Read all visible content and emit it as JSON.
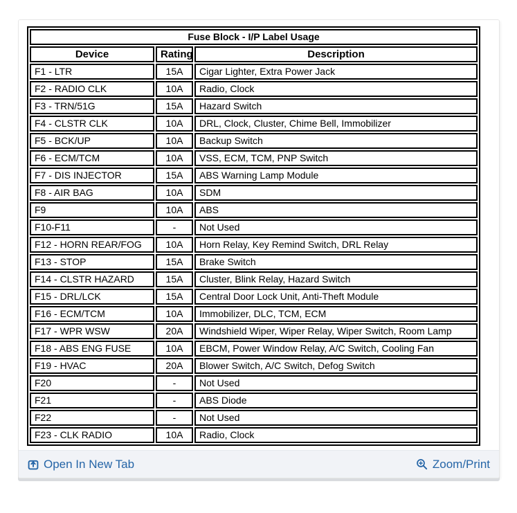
{
  "table": {
    "title": "Fuse Block - I/P Label Usage",
    "columns": [
      "Device",
      "Rating",
      "Description"
    ],
    "rows": [
      {
        "device": "F1 - LTR",
        "rating": "15A",
        "description": "Cigar Lighter, Extra Power Jack"
      },
      {
        "device": "F2 - RADIO CLK",
        "rating": "10A",
        "description": "Radio, Clock"
      },
      {
        "device": "F3 - TRN/51G",
        "rating": "15A",
        "description": "Hazard Switch"
      },
      {
        "device": "F4 - CLSTR CLK",
        "rating": "10A",
        "description": "DRL, Clock, Cluster, Chime Bell, Immobilizer"
      },
      {
        "device": "F5 - BCK/UP",
        "rating": "10A",
        "description": "Backup Switch"
      },
      {
        "device": "F6 - ECM/TCM",
        "rating": "10A",
        "description": "VSS, ECM, TCM, PNP Switch"
      },
      {
        "device": "F7 - DIS INJECTOR",
        "rating": "15A",
        "description": "ABS Warning Lamp Module"
      },
      {
        "device": "F8 - AIR BAG",
        "rating": "10A",
        "description": "SDM"
      },
      {
        "device": "F9",
        "rating": "10A",
        "description": "ABS"
      },
      {
        "device": "F10-F11",
        "rating": "-",
        "description": "Not Used"
      },
      {
        "device": "F12 - HORN REAR/FOG",
        "rating": "10A",
        "description": "Horn Relay, Key Remind Switch, DRL Relay"
      },
      {
        "device": "F13 - STOP",
        "rating": "15A",
        "description": "Brake Switch"
      },
      {
        "device": "F14 - CLSTR HAZARD",
        "rating": "15A",
        "description": "Cluster, Blink Relay, Hazard Switch"
      },
      {
        "device": "F15 - DRL/LCK",
        "rating": "15A",
        "description": "Central Door Lock Unit, Anti-Theft Module"
      },
      {
        "device": "F16 - ECM/TCM",
        "rating": "10A",
        "description": "Immobilizer, DLC, TCM, ECM"
      },
      {
        "device": "F17 - WPR WSW",
        "rating": "20A",
        "description": "Windshield Wiper, Wiper Relay, Wiper Switch, Room Lamp"
      },
      {
        "device": "F18 - ABS ENG FUSE",
        "rating": "10A",
        "description": "EBCM, Power Window Relay, A/C Switch, Cooling Fan"
      },
      {
        "device": "F19 - HVAC",
        "rating": "20A",
        "description": "Blower Switch, A/C Switch, Defog Switch"
      },
      {
        "device": "F20",
        "rating": "-",
        "description": "Not Used"
      },
      {
        "device": "F21",
        "rating": "-",
        "description": "ABS Diode"
      },
      {
        "device": "F22",
        "rating": "-",
        "description": "Not Used"
      },
      {
        "device": "F23 - CLK RADIO",
        "rating": "10A",
        "description": "Radio, Clock"
      }
    ]
  },
  "footer": {
    "open_in_new_tab_label": "Open In New Tab",
    "zoom_print_label": "Zoom/Print",
    "open_in_new_tab_icon": "open-in-new-tab-icon",
    "zoom_icon": "zoom-plus-icon"
  },
  "colors": {
    "link_blue": "#2565a7",
    "footer_bg": "#f1f3f7",
    "table_border": "#000000",
    "card_shadow": "#d9dbde"
  }
}
